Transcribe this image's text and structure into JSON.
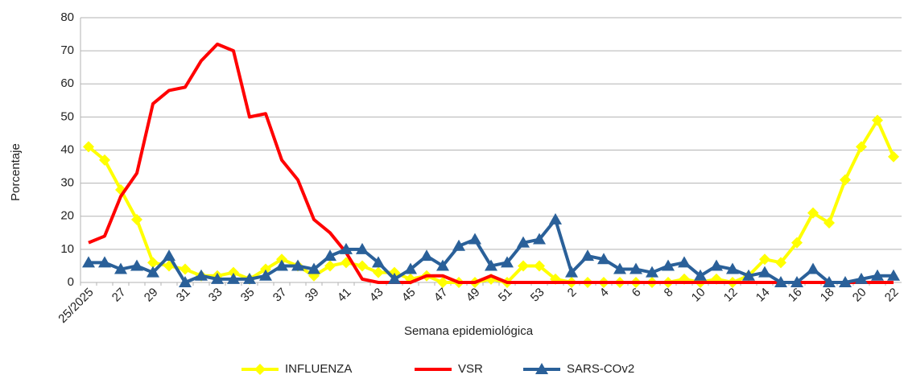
{
  "chart_data": {
    "type": "line",
    "x_label": "Semana epidemiológica",
    "y_label": "Porcentaje",
    "categories": [
      "25/2025",
      null,
      "27",
      null,
      "29",
      null,
      "31",
      null,
      "33",
      null,
      "35",
      null,
      "37",
      null,
      "39",
      null,
      "41",
      null,
      "43",
      null,
      "45",
      null,
      "47",
      null,
      "49",
      null,
      "51",
      null,
      "53",
      null,
      "2",
      null,
      "4",
      null,
      "6",
      null,
      "8",
      null,
      "10",
      null,
      "12",
      null,
      "14",
      null,
      "16",
      null,
      "18",
      null,
      "20",
      null,
      "22"
    ],
    "series": [
      {
        "name": "INFLUENZA",
        "color": "#ffff00",
        "marker": "diamond",
        "values": [
          41,
          37,
          28,
          19,
          6,
          5,
          4,
          2,
          2,
          3,
          1,
          4,
          7,
          5,
          2,
          5,
          6,
          5,
          3,
          3,
          1,
          2,
          0,
          0,
          0,
          1,
          0,
          5,
          5,
          1,
          0,
          0,
          0,
          0,
          0,
          0,
          0,
          1,
          0,
          1,
          0,
          2,
          7,
          6,
          12,
          21,
          18,
          31,
          41,
          49,
          38
        ]
      },
      {
        "name": "VSR",
        "color": "#ff0000",
        "marker": "none",
        "values": [
          12,
          14,
          26,
          33,
          54,
          58,
          59,
          67,
          72,
          70,
          50,
          51,
          37,
          31,
          19,
          15,
          9,
          1,
          0,
          0,
          0,
          2,
          2,
          0,
          0,
          2,
          0,
          0,
          0,
          0,
          0,
          0,
          0,
          0,
          0,
          0,
          0,
          0,
          0,
          0,
          0,
          0,
          0,
          0,
          0,
          0,
          0,
          0,
          0,
          0,
          0
        ]
      },
      {
        "name": "SARS-COv2",
        "color": "#2a6099",
        "marker": "triangle",
        "values": [
          6,
          6,
          4,
          5,
          3,
          8,
          0,
          2,
          1,
          1,
          1,
          2,
          5,
          5,
          4,
          8,
          10,
          10,
          6,
          1,
          4,
          8,
          5,
          11,
          13,
          5,
          6,
          12,
          13,
          19,
          3,
          8,
          7,
          4,
          4,
          3,
          5,
          6,
          2,
          5,
          4,
          2,
          3,
          0,
          0,
          4,
          0,
          0,
          1,
          2,
          2
        ]
      }
    ],
    "ylim": [
      0,
      80
    ],
    "yticks": [
      0,
      10,
      20,
      30,
      40,
      50,
      60,
      70,
      80
    ],
    "grid": true,
    "legend": "bottom"
  }
}
